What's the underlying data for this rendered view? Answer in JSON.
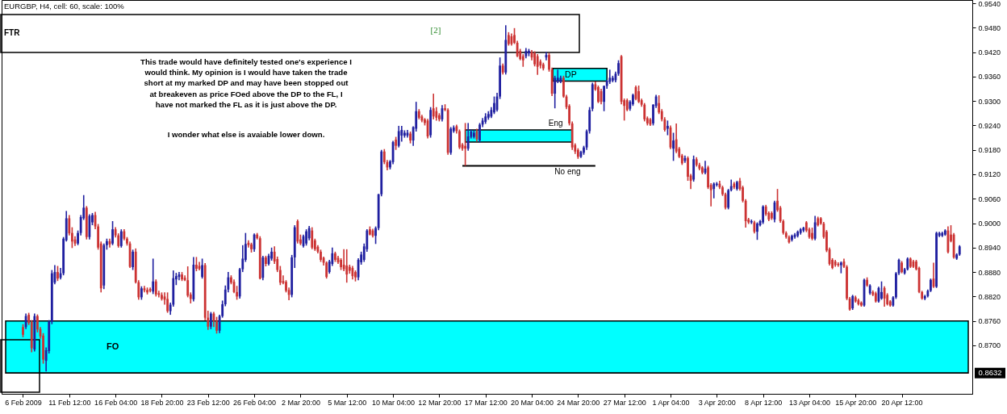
{
  "chart_data": {
    "type": "candlestick",
    "title": "EURGBP, H4, cell: 60, scale: 100%",
    "categories": [
      "6 Feb 2009",
      null,
      null,
      null,
      null,
      null,
      null,
      null,
      null,
      null,
      null,
      null,
      null,
      null,
      null,
      null,
      "11 Feb 12:00",
      null,
      null,
      null,
      null,
      null,
      null,
      null,
      null,
      null,
      null,
      null,
      null,
      null,
      null,
      null,
      "16 Feb 04:00",
      null,
      null,
      null,
      null,
      null,
      null,
      null,
      null,
      null,
      null,
      null,
      null,
      null,
      null,
      null,
      "18 Feb 20:00",
      null,
      null,
      null,
      null,
      null,
      null,
      null,
      null,
      null,
      null,
      null,
      null,
      null,
      null,
      null,
      "23 Feb 12:00",
      null,
      null,
      null,
      null,
      null,
      null,
      null,
      null,
      null,
      null,
      null,
      null,
      null,
      null,
      null,
      "26 Feb 04:00",
      null,
      null,
      null,
      null,
      null,
      null,
      null,
      null,
      null,
      null,
      null,
      null,
      null,
      null,
      null,
      "2 Mar 20:00",
      null,
      null,
      null,
      null,
      null,
      null,
      null,
      null,
      null,
      null,
      null,
      null,
      null,
      null,
      null,
      "5 Mar 12:00",
      null,
      null,
      null,
      null,
      null,
      null,
      null,
      null,
      null,
      null,
      null,
      null,
      null,
      null,
      null,
      "10 Mar 04:00",
      null,
      null,
      null,
      null,
      null,
      null,
      null,
      null,
      null,
      null,
      null,
      null,
      null,
      null,
      null,
      "12 Mar 20:00",
      null,
      null,
      null,
      null,
      null,
      null,
      null,
      null,
      null,
      null,
      null,
      null,
      null,
      null,
      null,
      "17 Mar 12:00",
      null,
      null,
      null,
      null,
      null,
      null,
      null,
      null,
      null,
      null,
      null,
      null,
      null,
      null,
      null,
      "20 Mar 04:00",
      null,
      null,
      null,
      null,
      null,
      null,
      null,
      null,
      null,
      null,
      null,
      null,
      null,
      null,
      null,
      "24 Mar 20:00",
      null,
      null,
      null,
      null,
      null,
      null,
      null,
      null,
      null,
      null,
      null,
      null,
      null,
      null,
      null,
      "27 Mar 12:00",
      null,
      null,
      null,
      null,
      null,
      null,
      null,
      null,
      null,
      null,
      null,
      null,
      null,
      null,
      null,
      "1 Apr 04:00",
      null,
      null,
      null,
      null,
      null,
      null,
      null,
      null,
      null,
      null,
      null,
      null,
      null,
      null,
      null,
      "3 Apr 20:00",
      null,
      null,
      null,
      null,
      null,
      null,
      null,
      null,
      null,
      null,
      null,
      null,
      null,
      null,
      null,
      "8 Apr 12:00",
      null,
      null,
      null,
      null,
      null,
      null,
      null,
      null,
      null,
      null,
      null,
      null,
      null,
      null,
      null,
      "13 Apr 04:00",
      null,
      null,
      null,
      null,
      null,
      null,
      null,
      null,
      null,
      null,
      null,
      null,
      null,
      null,
      null,
      "15 Apr 20:00",
      null,
      null,
      null,
      null,
      null,
      null,
      null,
      null,
      null,
      null,
      null,
      null,
      null,
      null,
      null,
      "20 Apr 12:00",
      null,
      null,
      null,
      null,
      null,
      null,
      null,
      null,
      null,
      null,
      null,
      null,
      null,
      null,
      null,
      null,
      null,
      null,
      null,
      null
    ],
    "ohlc": [
      [
        0.8745,
        0.8752,
        0.872,
        0.8726
      ],
      [
        0.8745,
        0.8778,
        0.874,
        0.8772
      ],
      [
        0.8775,
        0.878,
        0.875,
        0.8755
      ],
      [
        0.8758,
        0.8762,
        0.8683,
        0.8693
      ],
      [
        0.869,
        0.8778,
        0.8685,
        0.8772
      ],
      [
        0.8772,
        0.8776,
        0.8732,
        0.8739
      ],
      [
        0.874,
        0.8745,
        0.8716,
        0.8722
      ],
      [
        0.8724,
        0.873,
        0.8655,
        0.8665
      ],
      [
        0.8662,
        0.8695,
        0.8636,
        0.8688
      ],
      [
        0.8686,
        0.8762,
        0.868,
        0.8758
      ],
      [
        0.8758,
        0.8885,
        0.8752,
        0.8877
      ],
      [
        0.8854,
        0.8897,
        0.885,
        0.888
      ],
      [
        0.888,
        0.8895,
        0.8858,
        0.8864
      ],
      [
        0.8866,
        0.889,
        0.8862,
        0.8877
      ],
      [
        0.8877,
        0.8966,
        0.8872,
        0.8962
      ],
      [
        0.8958,
        0.903,
        0.8955,
        0.9012
      ],
      [
        0.9012,
        0.902,
        0.897,
        0.8975
      ],
      [
        0.8976,
        0.899,
        0.8939,
        0.8955
      ],
      [
        0.896,
        0.8968,
        0.8944,
        0.895
      ],
      [
        0.895,
        0.8982,
        0.8946,
        0.8976
      ],
      [
        0.8976,
        0.902,
        0.897,
        0.9015
      ],
      [
        0.9012,
        0.9069,
        0.9008,
        0.9038
      ],
      [
        0.9038,
        0.9042,
        0.896,
        0.8966
      ],
      [
        0.8966,
        0.9022,
        0.896,
        0.9018
      ],
      [
        0.9002,
        0.9025,
        0.8995,
        0.902
      ],
      [
        0.902,
        0.9028,
        0.8985,
        0.8992
      ],
      [
        0.8992,
        0.8998,
        0.8935,
        0.894
      ],
      [
        0.895,
        0.8955,
        0.883,
        0.884
      ],
      [
        0.8847,
        0.895,
        0.8838,
        0.8946
      ],
      [
        0.8946,
        0.8962,
        0.8935,
        0.8956
      ],
      [
        0.8956,
        0.8962,
        0.894,
        0.8948
      ],
      [
        0.895,
        0.9005,
        0.8946,
        0.8985
      ],
      [
        0.8985,
        0.899,
        0.8965,
        0.897
      ],
      [
        0.897,
        0.8975,
        0.894,
        0.8944
      ],
      [
        0.8944,
        0.8985,
        0.894,
        0.898
      ],
      [
        0.898,
        0.8985,
        0.8958,
        0.8962
      ],
      [
        0.8962,
        0.8966,
        0.8945,
        0.895
      ],
      [
        0.895,
        0.8955,
        0.889,
        0.8893
      ],
      [
        0.8892,
        0.8935,
        0.8885,
        0.893
      ],
      [
        0.893,
        0.8938,
        0.8852,
        0.8855
      ],
      [
        0.8855,
        0.886,
        0.8812,
        0.8818
      ],
      [
        0.8818,
        0.8845,
        0.8812,
        0.884
      ],
      [
        0.884,
        0.8846,
        0.883,
        0.8835
      ],
      [
        0.8836,
        0.8842,
        0.8825,
        0.883
      ],
      [
        0.8838,
        0.8842,
        0.883,
        0.8834
      ],
      [
        0.8832,
        0.8913,
        0.8826,
        0.8857
      ],
      [
        0.8857,
        0.8862,
        0.882,
        0.8825
      ],
      [
        0.8828,
        0.8834,
        0.8818,
        0.8824
      ],
      [
        0.8824,
        0.883,
        0.881,
        0.8814
      ],
      [
        0.882,
        0.883,
        0.88,
        0.8812
      ],
      [
        0.8814,
        0.883,
        0.878,
        0.8784
      ],
      [
        0.8784,
        0.8805,
        0.8775,
        0.88
      ],
      [
        0.88,
        0.8884,
        0.8795,
        0.8865
      ],
      [
        0.8862,
        0.8878,
        0.8848,
        0.887
      ],
      [
        0.8868,
        0.888,
        0.886,
        0.8874
      ],
      [
        0.8874,
        0.888,
        0.8858,
        0.8862
      ],
      [
        0.8866,
        0.8872,
        0.8858,
        0.886
      ],
      [
        0.886,
        0.8894,
        0.8818,
        0.8822
      ],
      [
        0.8825,
        0.883,
        0.8803,
        0.8814
      ],
      [
        0.8813,
        0.8917,
        0.8808,
        0.8898
      ],
      [
        0.8898,
        0.8917,
        0.8882,
        0.8888
      ],
      [
        0.8895,
        0.8905,
        0.8884,
        0.8888
      ],
      [
        0.8868,
        0.8913,
        0.8864,
        0.8897
      ],
      [
        0.8897,
        0.8902,
        0.8762,
        0.8768
      ],
      [
        0.8768,
        0.8785,
        0.8738,
        0.8746
      ],
      [
        0.8746,
        0.8782,
        0.874,
        0.8778
      ],
      [
        0.8778,
        0.8782,
        0.8745,
        0.876
      ],
      [
        0.876,
        0.877,
        0.8729,
        0.8736
      ],
      [
        0.8736,
        0.8775,
        0.873,
        0.8772
      ],
      [
        0.8772,
        0.881,
        0.8768,
        0.8801
      ],
      [
        0.8801,
        0.8847,
        0.8796,
        0.8837
      ],
      [
        0.8837,
        0.888,
        0.883,
        0.8867
      ],
      [
        0.8867,
        0.8872,
        0.885,
        0.8854
      ],
      [
        0.8856,
        0.8862,
        0.8828,
        0.8831
      ],
      [
        0.8831,
        0.8846,
        0.8812,
        0.882
      ],
      [
        0.882,
        0.889,
        0.8815,
        0.8887
      ],
      [
        0.8887,
        0.8946,
        0.888,
        0.8913
      ],
      [
        0.891,
        0.8976,
        0.8905,
        0.8949
      ],
      [
        0.8952,
        0.8958,
        0.894,
        0.8946
      ],
      [
        0.8948,
        0.8952,
        0.8928,
        0.8936
      ],
      [
        0.8936,
        0.8975,
        0.893,
        0.8972
      ],
      [
        0.8972,
        0.8976,
        0.896,
        0.8963
      ],
      [
        0.8963,
        0.8968,
        0.8862,
        0.8864
      ],
      [
        0.8866,
        0.892,
        0.886,
        0.8916
      ],
      [
        0.8916,
        0.892,
        0.8894,
        0.89
      ],
      [
        0.89,
        0.8925,
        0.8896,
        0.892
      ],
      [
        0.8913,
        0.894,
        0.8908,
        0.893
      ],
      [
        0.893,
        0.8943,
        0.89,
        0.8906
      ],
      [
        0.8912,
        0.8918,
        0.888,
        0.8885
      ],
      [
        0.8885,
        0.8895,
        0.8848,
        0.8854
      ],
      [
        0.8858,
        0.8872,
        0.885,
        0.8853
      ],
      [
        0.8856,
        0.886,
        0.883,
        0.8834
      ],
      [
        0.8836,
        0.8842,
        0.8811,
        0.8824
      ],
      [
        0.8824,
        0.8922,
        0.8818,
        0.8916
      ],
      [
        0.8916,
        0.8995,
        0.889,
        0.899
      ],
      [
        0.9005,
        0.9009,
        0.895,
        0.8955
      ],
      [
        0.896,
        0.8972,
        0.8946,
        0.895
      ],
      [
        0.8944,
        0.8972,
        0.894,
        0.8968
      ],
      [
        0.895,
        0.8985,
        0.8945,
        0.898
      ],
      [
        0.8963,
        0.8993,
        0.8958,
        0.8988
      ],
      [
        0.8982,
        0.899,
        0.8936,
        0.894
      ],
      [
        0.8958,
        0.8962,
        0.8932,
        0.8936
      ],
      [
        0.8942,
        0.8946,
        0.8926,
        0.893
      ],
      [
        0.893,
        0.8935,
        0.8905,
        0.891
      ],
      [
        0.8915,
        0.8918,
        0.8896,
        0.8903
      ],
      [
        0.8903,
        0.8906,
        0.8864,
        0.8868
      ],
      [
        0.888,
        0.891,
        0.8876,
        0.8906
      ],
      [
        0.89,
        0.894,
        0.8895,
        0.8926
      ],
      [
        0.8926,
        0.893,
        0.8905,
        0.891
      ],
      [
        0.8915,
        0.892,
        0.89,
        0.8904
      ],
      [
        0.891,
        0.8914,
        0.8885,
        0.8892
      ],
      [
        0.8898,
        0.8936,
        0.8882,
        0.8887
      ],
      [
        0.8896,
        0.8936,
        0.8854,
        0.8874
      ],
      [
        0.8893,
        0.8898,
        0.8876,
        0.8883
      ],
      [
        0.889,
        0.8895,
        0.8862,
        0.887
      ],
      [
        0.888,
        0.8884,
        0.8857,
        0.8867
      ],
      [
        0.8867,
        0.8914,
        0.886,
        0.891
      ],
      [
        0.8904,
        0.893,
        0.8898,
        0.8923
      ],
      [
        0.891,
        0.895,
        0.8905,
        0.8943
      ],
      [
        0.8936,
        0.8985,
        0.893,
        0.8982
      ],
      [
        0.8985,
        0.8992,
        0.897,
        0.8972
      ],
      [
        0.8982,
        0.8986,
        0.8965,
        0.8969
      ],
      [
        0.8969,
        0.8992,
        0.8949,
        0.8988
      ],
      [
        0.8988,
        0.9072,
        0.8983,
        0.9071
      ],
      [
        0.9071,
        0.918,
        0.9066,
        0.9176
      ],
      [
        0.9176,
        0.9182,
        0.9145,
        0.915
      ],
      [
        0.915,
        0.9155,
        0.913,
        0.9137
      ],
      [
        0.9137,
        0.9155,
        0.9132,
        0.9152
      ],
      [
        0.915,
        0.9202,
        0.9145,
        0.9199
      ],
      [
        0.9205,
        0.9212,
        0.918,
        0.919
      ],
      [
        0.919,
        0.9239,
        0.9186,
        0.9226
      ],
      [
        0.9215,
        0.9239,
        0.92,
        0.9229
      ],
      [
        0.9215,
        0.9228,
        0.921,
        0.9222
      ],
      [
        0.9215,
        0.9229,
        0.921,
        0.9222
      ],
      [
        0.922,
        0.9225,
        0.9196,
        0.9203
      ],
      [
        0.9203,
        0.9238,
        0.919,
        0.9236
      ],
      [
        0.9232,
        0.9298,
        0.9225,
        0.9275
      ],
      [
        0.9275,
        0.928,
        0.9255,
        0.9259
      ],
      [
        0.9262,
        0.9266,
        0.9248,
        0.9252
      ],
      [
        0.9255,
        0.9258,
        0.924,
        0.9246
      ],
      [
        0.9252,
        0.9256,
        0.9208,
        0.9213
      ],
      [
        0.9216,
        0.9285,
        0.921,
        0.9278
      ],
      [
        0.9282,
        0.9318,
        0.9255,
        0.9262
      ],
      [
        0.9275,
        0.9285,
        0.9252,
        0.9259
      ],
      [
        0.9265,
        0.927,
        0.925,
        0.9255
      ],
      [
        0.9255,
        0.929,
        0.925,
        0.9282
      ],
      [
        0.9282,
        0.9292,
        0.9275,
        0.9278
      ],
      [
        0.9278,
        0.9282,
        0.9168,
        0.9173
      ],
      [
        0.9173,
        0.9236,
        0.9168,
        0.9232
      ],
      [
        0.9226,
        0.924,
        0.9222,
        0.9235
      ],
      [
        0.9238,
        0.9242,
        0.922,
        0.9226
      ],
      [
        0.9226,
        0.923,
        0.9182,
        0.9186
      ],
      [
        0.9193,
        0.9197,
        0.9178,
        0.9183
      ],
      [
        0.919,
        0.9246,
        0.9141,
        0.9183
      ],
      [
        0.9183,
        0.9246,
        0.9178,
        0.9213
      ],
      [
        0.9212,
        0.923,
        0.9208,
        0.9225
      ],
      [
        0.9212,
        0.9228,
        0.9208,
        0.9222
      ],
      [
        0.9226,
        0.9232,
        0.92,
        0.9206
      ],
      [
        0.9203,
        0.9246,
        0.9198,
        0.9242
      ],
      [
        0.9242,
        0.9258,
        0.9236,
        0.9252
      ],
      [
        0.9249,
        0.927,
        0.9244,
        0.9262
      ],
      [
        0.9259,
        0.9275,
        0.9254,
        0.9268
      ],
      [
        0.9262,
        0.9285,
        0.9258,
        0.9278
      ],
      [
        0.9272,
        0.9311,
        0.9268,
        0.9295
      ],
      [
        0.9278,
        0.932,
        0.9274,
        0.9311
      ],
      [
        0.9311,
        0.9407,
        0.9305,
        0.9387
      ],
      [
        0.9387,
        0.9392,
        0.9365,
        0.937
      ],
      [
        0.937,
        0.9486,
        0.9365,
        0.945
      ],
      [
        0.9462,
        0.9469,
        0.9436,
        0.944
      ],
      [
        0.9459,
        0.9466,
        0.9436,
        0.944
      ],
      [
        0.9462,
        0.9479,
        0.944,
        0.9443
      ],
      [
        0.9443,
        0.9448,
        0.9408,
        0.941
      ],
      [
        0.9423,
        0.9428,
        0.94,
        0.9403
      ],
      [
        0.941,
        0.9415,
        0.9384,
        0.94
      ],
      [
        0.941,
        0.943,
        0.9405,
        0.9423
      ],
      [
        0.9417,
        0.9428,
        0.941,
        0.9423
      ],
      [
        0.942,
        0.9425,
        0.94,
        0.9407
      ],
      [
        0.9417,
        0.9422,
        0.9385,
        0.939
      ],
      [
        0.941,
        0.9415,
        0.9364,
        0.9384
      ],
      [
        0.9397,
        0.9402,
        0.938,
        0.9387
      ],
      [
        0.939,
        0.9394,
        0.9375,
        0.938
      ],
      [
        0.9407,
        0.942,
        0.94,
        0.9413
      ],
      [
        0.9413,
        0.9418,
        0.9372,
        0.9377
      ],
      [
        0.9377,
        0.9382,
        0.9312,
        0.9318
      ],
      [
        0.9318,
        0.9362,
        0.9282,
        0.9357
      ],
      [
        0.9348,
        0.9377,
        0.9344,
        0.9357
      ],
      [
        0.9348,
        0.9362,
        0.9344,
        0.9357
      ],
      [
        0.9357,
        0.9362,
        0.9308,
        0.9311
      ],
      [
        0.9311,
        0.9315,
        0.928,
        0.9285
      ],
      [
        0.9288,
        0.9292,
        0.924,
        0.9245
      ],
      [
        0.9245,
        0.925,
        0.918,
        0.9186
      ],
      [
        0.9192,
        0.9196,
        0.917,
        0.9176
      ],
      [
        0.918,
        0.9184,
        0.9158,
        0.9163
      ],
      [
        0.9163,
        0.9178,
        0.916,
        0.9175
      ],
      [
        0.9173,
        0.919,
        0.9168,
        0.9186
      ],
      [
        0.9186,
        0.923,
        0.918,
        0.9226
      ],
      [
        0.9226,
        0.9285,
        0.922,
        0.9278
      ],
      [
        0.9281,
        0.9345,
        0.9275,
        0.9341
      ],
      [
        0.9341,
        0.9348,
        0.9325,
        0.9328
      ],
      [
        0.9334,
        0.9338,
        0.9295,
        0.9298
      ],
      [
        0.9324,
        0.933,
        0.9292,
        0.9298
      ],
      [
        0.9298,
        0.9338,
        0.9275,
        0.9337
      ],
      [
        0.9337,
        0.9352,
        0.933,
        0.935
      ],
      [
        0.9347,
        0.9377,
        0.9342,
        0.9357
      ],
      [
        0.935,
        0.9362,
        0.9346,
        0.9357
      ],
      [
        0.9351,
        0.9372,
        0.9346,
        0.9367
      ],
      [
        0.9367,
        0.94,
        0.9362,
        0.9393
      ],
      [
        0.941,
        0.9413,
        0.9292,
        0.9298
      ],
      [
        0.9302,
        0.9306,
        0.9252,
        0.9288
      ],
      [
        0.9302,
        0.9306,
        0.9275,
        0.9278
      ],
      [
        0.9281,
        0.9302,
        0.9276,
        0.9298
      ],
      [
        0.9292,
        0.9318,
        0.9288,
        0.9315
      ],
      [
        0.9334,
        0.9338,
        0.9302,
        0.9305
      ],
      [
        0.9324,
        0.9338,
        0.9295,
        0.9298
      ],
      [
        0.9302,
        0.9306,
        0.9286,
        0.9291
      ],
      [
        0.9291,
        0.9295,
        0.925,
        0.9255
      ],
      [
        0.9258,
        0.9262,
        0.924,
        0.9245
      ],
      [
        0.9255,
        0.9258,
        0.9239,
        0.9242
      ],
      [
        0.9245,
        0.9292,
        0.924,
        0.9291
      ],
      [
        0.9288,
        0.9315,
        0.9283,
        0.9311
      ],
      [
        0.9295,
        0.9314,
        0.9268,
        0.9272
      ],
      [
        0.9275,
        0.928,
        0.925,
        0.9255
      ],
      [
        0.9255,
        0.926,
        0.9225,
        0.9229
      ],
      [
        0.9232,
        0.9252,
        0.9216,
        0.9239
      ],
      [
        0.9235,
        0.924,
        0.9182,
        0.9186
      ],
      [
        0.9183,
        0.9222,
        0.9153,
        0.9203
      ],
      [
        0.9206,
        0.9245,
        0.9172,
        0.9176
      ],
      [
        0.9183,
        0.9187,
        0.916,
        0.9163
      ],
      [
        0.9166,
        0.917,
        0.9143,
        0.9147
      ],
      [
        0.9153,
        0.9166,
        0.9148,
        0.916
      ],
      [
        0.916,
        0.9164,
        0.9104,
        0.9114
      ],
      [
        0.9117,
        0.9121,
        0.9084,
        0.9104
      ],
      [
        0.9107,
        0.9166,
        0.9102,
        0.9157
      ],
      [
        0.9157,
        0.9162,
        0.9139,
        0.9143
      ],
      [
        0.9143,
        0.9148,
        0.913,
        0.9134
      ],
      [
        0.9137,
        0.914,
        0.912,
        0.9124
      ],
      [
        0.9124,
        0.9153,
        0.912,
        0.9134
      ],
      [
        0.9137,
        0.9141,
        0.9084,
        0.9088
      ],
      [
        0.9094,
        0.9098,
        0.9041,
        0.9081
      ],
      [
        0.9084,
        0.91,
        0.9061,
        0.9097
      ],
      [
        0.9094,
        0.9101,
        0.909,
        0.9097
      ],
      [
        0.9097,
        0.9104,
        0.9084,
        0.9088
      ],
      [
        0.9088,
        0.9092,
        0.9067,
        0.9071
      ],
      [
        0.9071,
        0.9075,
        0.9034,
        0.9038
      ],
      [
        0.9038,
        0.9084,
        0.9034,
        0.9081
      ],
      [
        0.9081,
        0.9107,
        0.9078,
        0.9091
      ],
      [
        0.9097,
        0.9101,
        0.9084,
        0.9088
      ],
      [
        0.9084,
        0.9104,
        0.908,
        0.9101
      ],
      [
        0.9104,
        0.9111,
        0.908,
        0.9084
      ],
      [
        0.9088,
        0.9092,
        0.9051,
        0.9055
      ],
      [
        0.9055,
        0.9059,
        0.8989,
        0.9005
      ],
      [
        0.9009,
        0.9013,
        0.8998,
        0.9002
      ],
      [
        0.9002,
        0.9009,
        0.8998,
        0.9005
      ],
      [
        0.9002,
        0.9006,
        0.8975,
        0.8979
      ],
      [
        0.8979,
        0.9002,
        0.8959,
        0.8999
      ],
      [
        0.8995,
        0.9008,
        0.8992,
        0.9005
      ],
      [
        0.9002,
        0.9044,
        0.8998,
        0.9041
      ],
      [
        0.9041,
        0.9045,
        0.9018,
        0.9022
      ],
      [
        0.9025,
        0.9029,
        0.9005,
        0.9009
      ],
      [
        0.9025,
        0.9029,
        0.9008,
        0.9012
      ],
      [
        0.9009,
        0.9055,
        0.9002,
        0.9051
      ],
      [
        0.9055,
        0.9084,
        0.9028,
        0.9032
      ],
      [
        0.9038,
        0.9042,
        0.9001,
        0.9005
      ],
      [
        0.9005,
        0.9009,
        0.8972,
        0.8976
      ],
      [
        0.8976,
        0.898,
        0.8962,
        0.8966
      ],
      [
        0.8966,
        0.897,
        0.895,
        0.8953
      ],
      [
        0.8959,
        0.8972,
        0.8955,
        0.8969
      ],
      [
        0.8966,
        0.8976,
        0.8962,
        0.8972
      ],
      [
        0.8969,
        0.8982,
        0.8965,
        0.8979
      ],
      [
        0.8976,
        0.8988,
        0.8972,
        0.8985
      ],
      [
        0.8982,
        0.8991,
        0.8978,
        0.8989
      ],
      [
        0.9002,
        0.9005,
        0.8978,
        0.8982
      ],
      [
        0.8985,
        0.8989,
        0.8962,
        0.8966
      ],
      [
        0.8976,
        0.8989,
        0.8958,
        0.8962
      ],
      [
        0.8962,
        0.9018,
        0.8958,
        0.9002
      ],
      [
        0.9012,
        0.9016,
        0.8992,
        0.8995
      ],
      [
        0.9012,
        0.9015,
        0.8996,
        0.8999
      ],
      [
        0.8999,
        0.9003,
        0.8962,
        0.8966
      ],
      [
        0.8979,
        0.8983,
        0.8929,
        0.8933
      ],
      [
        0.8936,
        0.894,
        0.8896,
        0.89
      ],
      [
        0.891,
        0.8914,
        0.8887,
        0.889
      ],
      [
        0.8906,
        0.891,
        0.8893,
        0.8897
      ],
      [
        0.89,
        0.8904,
        0.8893,
        0.8897
      ],
      [
        0.8897,
        0.8906,
        0.8877,
        0.8903
      ],
      [
        0.8906,
        0.8913,
        0.889,
        0.8893
      ],
      [
        0.8893,
        0.8897,
        0.8811,
        0.8815
      ],
      [
        0.8815,
        0.8819,
        0.8785,
        0.8788
      ],
      [
        0.8791,
        0.8824,
        0.8787,
        0.8821
      ],
      [
        0.8818,
        0.8822,
        0.8805,
        0.8808
      ],
      [
        0.8811,
        0.8815,
        0.8798,
        0.8801
      ],
      [
        0.8805,
        0.8808,
        0.8795,
        0.8798
      ],
      [
        0.8798,
        0.8864,
        0.8795,
        0.8861
      ],
      [
        0.8861,
        0.8867,
        0.8844,
        0.8847
      ],
      [
        0.8828,
        0.885,
        0.8824,
        0.8847
      ],
      [
        0.8831,
        0.8835,
        0.8821,
        0.8824
      ],
      [
        0.8828,
        0.8832,
        0.8805,
        0.8808
      ],
      [
        0.8808,
        0.8844,
        0.8805,
        0.8841
      ],
      [
        0.8815,
        0.8857,
        0.8812,
        0.8831
      ],
      [
        0.8841,
        0.8845,
        0.8795,
        0.8815
      ],
      [
        0.8824,
        0.8828,
        0.8798,
        0.8801
      ],
      [
        0.8808,
        0.8811,
        0.8795,
        0.8798
      ],
      [
        0.8798,
        0.8821,
        0.8795,
        0.8818
      ],
      [
        0.8818,
        0.888,
        0.8814,
        0.8877
      ],
      [
        0.8877,
        0.8913,
        0.8873,
        0.891
      ],
      [
        0.8903,
        0.8907,
        0.8877,
        0.888
      ],
      [
        0.8877,
        0.889,
        0.8874,
        0.8887
      ],
      [
        0.8887,
        0.8916,
        0.8884,
        0.8913
      ],
      [
        0.8913,
        0.8916,
        0.889,
        0.8893
      ],
      [
        0.8906,
        0.891,
        0.889,
        0.8893
      ],
      [
        0.8906,
        0.891,
        0.8884,
        0.8887
      ],
      [
        0.889,
        0.8893,
        0.8828,
        0.8831
      ],
      [
        0.8831,
        0.8834,
        0.8812,
        0.8815
      ],
      [
        0.8815,
        0.8824,
        0.8811,
        0.8821
      ],
      [
        0.8821,
        0.8837,
        0.8818,
        0.8834
      ],
      [
        0.8834,
        0.8864,
        0.8831,
        0.8861
      ],
      [
        0.8864,
        0.8903,
        0.8841,
        0.8844
      ],
      [
        0.8844,
        0.8979,
        0.8841,
        0.8976
      ],
      [
        0.8969,
        0.8979,
        0.8966,
        0.8976
      ],
      [
        0.8969,
        0.8979,
        0.8966,
        0.8976
      ],
      [
        0.8972,
        0.8985,
        0.8969,
        0.8982
      ],
      [
        0.8982,
        0.8992,
        0.8926,
        0.8929
      ],
      [
        0.8972,
        0.8995,
        0.8953,
        0.8956
      ],
      [
        0.8972,
        0.8976,
        0.8913,
        0.8916
      ],
      [
        0.8913,
        0.8926,
        0.891,
        0.8923
      ],
      [
        0.8923,
        0.8946,
        0.892,
        0.8943
      ]
    ],
    "colors": [
      "#cc3333",
      "#2020a0",
      "#cc3333",
      "#cc3333",
      "#2020a0",
      "#cc3333",
      "#cc3333",
      "#cc3333",
      "#2020a0",
      "#2020a0",
      "#2020a0",
      "#2020a0",
      "#cc3333",
      "#2020a0",
      "#2020a0",
      "#2020a0",
      "#cc3333",
      "#cc3333",
      "#cc3333",
      "#2020a0",
      "#2020a0",
      "#2020a0",
      "#cc3333",
      "#2020a0",
      "#2020a0",
      "#cc3333",
      "#cc3333",
      "#cc3333",
      "#2020a0",
      "#2020a0",
      "#cc3333",
      "#2020a0",
      "#cc3333",
      "#cc3333",
      "#2020a0",
      "#cc3333",
      "#cc3333",
      "#cc3333",
      "#2020a0",
      "#cc3333",
      "#cc3333",
      "#2020a0",
      "#cc3333",
      "#cc3333",
      "#cc3333",
      "#2020a0",
      "#cc3333",
      "#cc3333",
      "#cc3333",
      "#cc3333",
      "#cc3333",
      "#2020a0",
      "#2020a0",
      "#2020a0",
      "#2020a0",
      "#cc3333",
      "#cc3333",
      "#cc3333",
      "#cc3333",
      "#2020a0",
      "#cc3333",
      "#cc3333",
      "#2020a0",
      "#cc3333",
      "#cc3333",
      "#2020a0",
      "#cc3333",
      "#cc3333",
      "#2020a0",
      "#2020a0",
      "#2020a0",
      "#2020a0",
      "#cc3333",
      "#cc3333",
      "#cc3333",
      "#2020a0",
      "#2020a0",
      "#2020a0",
      "#cc3333",
      "#cc3333",
      "#2020a0",
      "#cc3333",
      "#cc3333",
      "#2020a0",
      "#cc3333",
      "#2020a0",
      "#2020a0",
      "#cc3333",
      "#cc3333",
      "#cc3333",
      "#cc3333",
      "#cc3333",
      "#cc3333",
      "#2020a0",
      "#2020a0",
      "#cc3333",
      "#cc3333",
      "#2020a0",
      "#2020a0",
      "#2020a0",
      "#cc3333",
      "#cc3333",
      "#cc3333",
      "#cc3333",
      "#cc3333",
      "#cc3333",
      "#2020a0",
      "#2020a0",
      "#cc3333",
      "#cc3333",
      "#cc3333",
      "#cc3333",
      "#cc3333",
      "#cc3333",
      "#cc3333",
      "#cc3333",
      "#2020a0",
      "#2020a0",
      "#2020a0",
      "#2020a0",
      "#cc3333",
      "#cc3333",
      "#2020a0",
      "#2020a0",
      "#2020a0",
      "#cc3333",
      "#cc3333",
      "#2020a0",
      "#2020a0",
      "#cc3333",
      "#2020a0",
      "#2020a0",
      "#2020a0",
      "#2020a0",
      "#cc3333",
      "#2020a0",
      "#2020a0",
      "#cc3333",
      "#cc3333",
      "#cc3333",
      "#cc3333",
      "#2020a0",
      "#cc3333",
      "#cc3333",
      "#cc3333",
      "#2020a0",
      "#cc3333",
      "#cc3333",
      "#2020a0",
      "#2020a0",
      "#cc3333",
      "#cc3333",
      "#cc3333",
      "#cc3333",
      "#2020a0",
      "#2020a0",
      "#2020a0",
      "#cc3333",
      "#2020a0",
      "#2020a0",
      "#2020a0",
      "#2020a0",
      "#2020a0",
      "#2020a0",
      "#2020a0",
      "#2020a0",
      "#cc3333",
      "#2020a0",
      "#cc3333",
      "#cc3333",
      "#cc3333",
      "#cc3333",
      "#cc3333",
      "#cc3333",
      "#2020a0",
      "#2020a0",
      "#cc3333",
      "#cc3333",
      "#cc3333",
      "#cc3333",
      "#cc3333",
      "#2020a0",
      "#cc3333",
      "#cc3333",
      "#2020a0",
      "#2020a0",
      "#2020a0",
      "#cc3333",
      "#cc3333",
      "#cc3333",
      "#cc3333",
      "#cc3333",
      "#cc3333",
      "#2020a0",
      "#2020a0",
      "#2020a0",
      "#2020a0",
      "#2020a0",
      "#cc3333",
      "#cc3333",
      "#cc3333",
      "#2020a0",
      "#2020a0",
      "#2020a0",
      "#2020a0",
      "#2020a0",
      "#2020a0",
      "#cc3333",
      "#cc3333",
      "#cc3333",
      "#2020a0",
      "#2020a0",
      "#cc3333",
      "#cc3333",
      "#cc3333",
      "#cc3333",
      "#cc3333",
      "#cc3333",
      "#2020a0",
      "#2020a0",
      "#cc3333",
      "#cc3333",
      "#cc3333",
      "#2020a0",
      "#cc3333",
      "#2020a0",
      "#cc3333",
      "#cc3333",
      "#cc3333",
      "#2020a0",
      "#cc3333",
      "#cc3333",
      "#2020a0",
      "#cc3333",
      "#cc3333",
      "#cc3333",
      "#2020a0",
      "#cc3333",
      "#cc3333",
      "#2020a0",
      "#2020a0",
      "#cc3333",
      "#cc3333",
      "#cc3333",
      "#2020a0",
      "#2020a0",
      "#cc3333",
      "#2020a0",
      "#cc3333",
      "#cc3333",
      "#cc3333",
      "#cc3333",
      "#2020a0",
      "#cc3333",
      "#2020a0",
      "#2020a0",
      "#2020a0",
      "#cc3333",
      "#cc3333",
      "#cc3333",
      "#2020a0",
      "#cc3333",
      "#cc3333",
      "#cc3333",
      "#cc3333",
      "#cc3333",
      "#2020a0",
      "#2020a0",
      "#2020a0",
      "#2020a0",
      "#2020a0",
      "#cc3333",
      "#cc3333",
      "#cc3333",
      "#2020a0",
      "#cc3333",
      "#cc3333",
      "#cc3333",
      "#cc3333",
      "#cc3333",
      "#cc3333",
      "#cc3333",
      "#cc3333",
      "#2020a0",
      "#cc3333",
      "#cc3333",
      "#cc3333",
      "#2020a0",
      "#cc3333",
      "#cc3333",
      "#cc3333",
      "#2020a0",
      "#cc3333",
      "#2020a0",
      "#cc3333",
      "#cc3333",
      "#2020a0",
      "#2020a0",
      "#cc3333",
      "#cc3333",
      "#cc3333",
      "#2020a0",
      "#2020a0",
      "#2020a0",
      "#cc3333",
      "#2020a0",
      "#2020a0",
      "#cc3333",
      "#cc3333",
      "#cc3333",
      "#cc3333",
      "#cc3333",
      "#2020a0",
      "#2020a0",
      "#2020a0",
      "#cc3333",
      "#2020a0",
      "#2020a0",
      "#2020a0",
      "#2020a0",
      "#cc3333",
      "#cc3333",
      "#cc3333",
      "#2020a0",
      "#2020a0"
    ],
    "ylim": [
      0.8581,
      0.9548
    ],
    "yticks": [
      {
        "value": 0.87,
        "label": "0.8700"
      },
      {
        "value": 0.876,
        "label": "0.8760"
      },
      {
        "value": 0.882,
        "label": "0.8820"
      },
      {
        "value": 0.888,
        "label": "0.8880"
      },
      {
        "value": 0.894,
        "label": "0.8940"
      },
      {
        "value": 0.9,
        "label": "0.9000"
      },
      {
        "value": 0.906,
        "label": "0.9060"
      },
      {
        "value": 0.912,
        "label": "0.9120"
      },
      {
        "value": 0.918,
        "label": "0.9180"
      },
      {
        "value": 0.924,
        "label": "0.9240"
      },
      {
        "value": 0.93,
        "label": "0.9300"
      },
      {
        "value": 0.936,
        "label": "0.9360"
      },
      {
        "value": 0.942,
        "label": "0.9420"
      },
      {
        "value": 0.948,
        "label": "0.9480"
      },
      {
        "value": 0.954,
        "label": "0.9540"
      }
    ],
    "bands": [
      {
        "axis": "y",
        "from": 0.9349,
        "to": 0.938,
        "label": "DP",
        "color": "#00ffff"
      },
      {
        "axis": "y",
        "from": 0.9199,
        "to": 0.9229,
        "label": "Eng",
        "color": "#00ffff"
      },
      {
        "axis": "y",
        "from": 0.8632,
        "to": 0.876,
        "label": "FO",
        "color": "#00ffff"
      }
    ],
    "ref_lines": [
      {
        "axis": "y",
        "value": 0.9141,
        "label": "No eng",
        "color": "#000000"
      },
      {
        "axis": "y",
        "value": 0.8632,
        "label": "0.8632",
        "color": "#000000"
      }
    ],
    "annotations": [
      "FTR",
      "[2]",
      "This trade would have definitely tested one's experience I\nwould think. My opinion is I would have taken the trade\nshort at my marked DP and may have been stopped out\nat breakeven as price FOed above the DP to the FL, I\nhave not marked the FL as it is just above the DP.",
      "I wonder what else is avaiable lower down."
    ]
  }
}
